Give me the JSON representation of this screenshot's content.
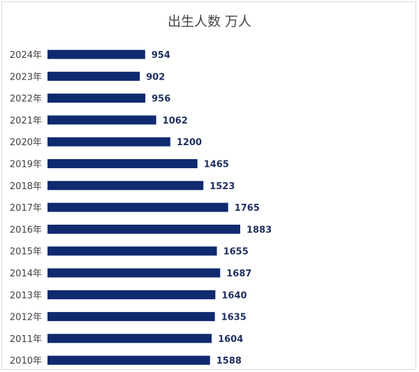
{
  "chart_data": {
    "type": "bar",
    "orientation": "horizontal",
    "title": "出生人数 万人",
    "categories": [
      "2024年",
      "2023年",
      "2022年",
      "2021年",
      "2020年",
      "2019年",
      "2018年",
      "2017年",
      "2016年",
      "2015年",
      "2014年",
      "2013年",
      "2012年",
      "2011年",
      "2010年"
    ],
    "values": [
      954,
      902,
      956,
      1062,
      1200,
      1465,
      1523,
      1765,
      1883,
      1655,
      1687,
      1640,
      1635,
      1604,
      1588
    ],
    "bar_color": "#0f2a6e",
    "grid": false,
    "legend": "none"
  }
}
